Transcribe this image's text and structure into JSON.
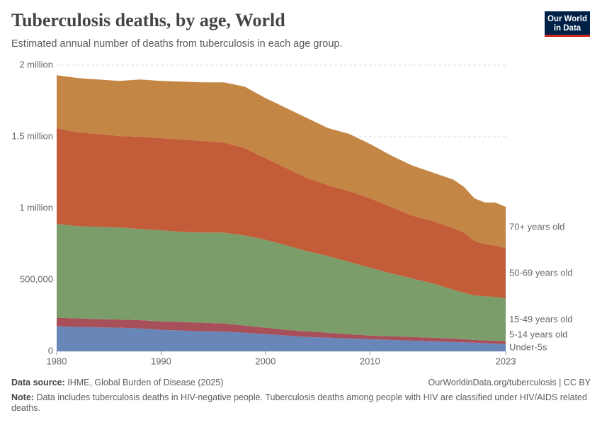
{
  "chart_data": {
    "type": "stacked_area",
    "title": "Tuberculosis deaths, by age, World",
    "subtitle": "Estimated annual number of deaths from tuberculosis in each age group.",
    "logo": [
      "Our World",
      "in Data"
    ],
    "source_label": "Data source:",
    "source": "IHME, Global Burden of Disease (2025)",
    "url": "OurWorldinData.org/tuberculosis | CC BY",
    "note_label": "Note:",
    "note": "Data includes tuberculosis deaths in HIV-negative people. Tuberculosis deaths among people with HIV are classified under HIV/AIDS related deaths.",
    "x": [
      1980,
      1982,
      1984,
      1986,
      1988,
      1990,
      1992,
      1994,
      1996,
      1998,
      2000,
      2002,
      2004,
      2006,
      2008,
      2010,
      2012,
      2014,
      2016,
      2018,
      2019,
      2020,
      2021,
      2022,
      2023
    ],
    "xlim": [
      1980,
      2023
    ],
    "xticks": [
      1980,
      1990,
      2000,
      2010,
      2023
    ],
    "ylim": [
      0,
      2000000
    ],
    "yticks": [
      0,
      {
        "value": 500000,
        "label": "500,000"
      },
      {
        "value": 1000000,
        "label": "1 million"
      },
      {
        "value": 1500000,
        "label": "1.5 million"
      },
      {
        "value": 2000000,
        "label": "2 million"
      }
    ],
    "grid": true,
    "series": [
      {
        "name": "Under-5s",
        "color": "#6886b8",
        "label_color": "#4d6fa8",
        "values": [
          175000,
          170000,
          168000,
          165000,
          160000,
          150000,
          145000,
          140000,
          138000,
          130000,
          120000,
          110000,
          100000,
          95000,
          90000,
          85000,
          80000,
          75000,
          70000,
          65000,
          63000,
          60000,
          57000,
          54000,
          50000
        ]
      },
      {
        "name": "5-14 years old",
        "color": "#a8505a",
        "label_color": "#9a3a45",
        "values": [
          60000,
          60000,
          57000,
          57000,
          58000,
          60000,
          60000,
          60000,
          57000,
          50000,
          45000,
          40000,
          40000,
          35000,
          30000,
          25000,
          25000,
          25000,
          25000,
          25000,
          22000,
          20000,
          20000,
          20000,
          20000
        ]
      },
      {
        "name": "15-49 years old",
        "color": "#7b9d6a",
        "label_color": "#578a45",
        "values": [
          655000,
          645000,
          645000,
          643000,
          637000,
          635000,
          630000,
          630000,
          635000,
          630000,
          615000,
          590000,
          560000,
          535000,
          505000,
          475000,
          440000,
          410000,
          380000,
          340000,
          325000,
          310000,
          308000,
          306000,
          300000
        ]
      },
      {
        "name": "50-69 years old",
        "color": "#c35c39",
        "label_color": "#b8432a",
        "values": [
          670000,
          655000,
          650000,
          640000,
          645000,
          645000,
          645000,
          640000,
          630000,
          610000,
          570000,
          540000,
          510000,
          495000,
          495000,
          485000,
          465000,
          440000,
          435000,
          430000,
          420000,
          380000,
          365000,
          360000,
          350000
        ]
      },
      {
        "name": "70+ years old",
        "color": "#c48644",
        "label_color": "#b87a2e",
        "values": [
          370000,
          380000,
          380000,
          385000,
          400000,
          400000,
          405000,
          410000,
          420000,
          430000,
          420000,
          420000,
          420000,
          400000,
          400000,
          380000,
          360000,
          350000,
          340000,
          340000,
          320000,
          300000,
          290000,
          300000,
          290000
        ]
      }
    ]
  }
}
